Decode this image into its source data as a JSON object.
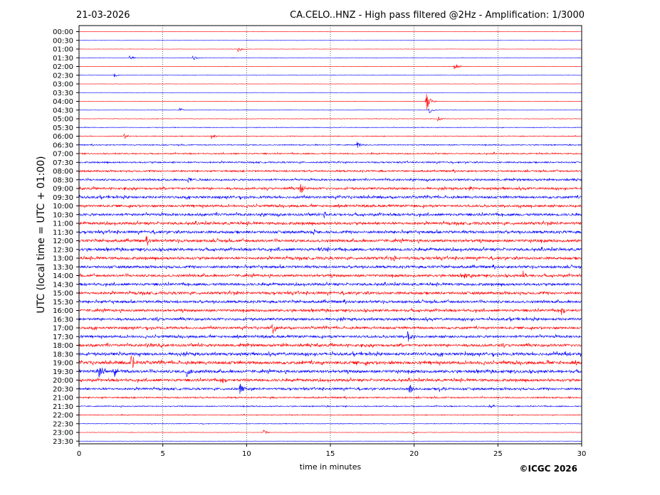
{
  "header": {
    "date": "21-03-2026",
    "station_title": "CA.CELO..HNZ - High pass filtered @2Hz - Amplification: 1/3000"
  },
  "footer": {
    "copyright": "©ICGC 2026"
  },
  "chart_data": {
    "type": "line",
    "title": "CA.CELO..HNZ - High pass filtered @2Hz - Amplification: 1/3000",
    "xlabel": "time in minutes",
    "ylabel": "UTC (local time = UTC + 01:00)",
    "xlim": [
      0,
      30
    ],
    "x_ticks": [
      0,
      5,
      10,
      15,
      20,
      25,
      30
    ],
    "grid": "vertical dotted at every 5 minutes",
    "trace_colors": [
      "#ff0000",
      "#0000ff"
    ],
    "rows": [
      "00:00",
      "00:30",
      "01:00",
      "01:30",
      "02:00",
      "02:30",
      "03:00",
      "03:30",
      "04:00",
      "04:30",
      "05:00",
      "05:30",
      "06:00",
      "06:30",
      "07:00",
      "07:30",
      "08:00",
      "08:30",
      "09:00",
      "09:30",
      "10:00",
      "10:30",
      "11:00",
      "11:30",
      "12:00",
      "12:30",
      "13:00",
      "13:30",
      "14:00",
      "14:30",
      "15:00",
      "15:30",
      "16:00",
      "16:30",
      "17:00",
      "17:30",
      "18:00",
      "18:30",
      "19:00",
      "19:30",
      "20:00",
      "20:30",
      "21:00",
      "21:30",
      "22:00",
      "22:30",
      "23:00",
      "23:30"
    ],
    "row_noise_level": [
      0.3,
      0.3,
      0.3,
      0.4,
      0.4,
      0.4,
      0.3,
      0.3,
      0.4,
      0.4,
      0.5,
      0.6,
      0.8,
      1.0,
      1.2,
      1.4,
      1.6,
      1.8,
      2.0,
      2.2,
      2.2,
      2.3,
      2.4,
      2.4,
      2.5,
      2.5,
      2.4,
      2.3,
      2.3,
      2.3,
      2.4,
      2.3,
      2.3,
      2.3,
      2.2,
      2.2,
      2.4,
      2.6,
      2.8,
      2.6,
      2.4,
      2.0,
      1.4,
      1.0,
      0.8,
      0.6,
      0.4,
      0.3
    ],
    "events": [
      {
        "row": "01:00",
        "minute": 9.5,
        "amplitude": 5
      },
      {
        "row": "01:30",
        "minute": 3.0,
        "amplitude": 4
      },
      {
        "row": "01:30",
        "minute": 6.8,
        "amplitude": 4
      },
      {
        "row": "02:00",
        "minute": 22.4,
        "amplitude": 6
      },
      {
        "row": "02:30",
        "minute": 2.1,
        "amplitude": 3
      },
      {
        "row": "04:00",
        "minute": 20.7,
        "amplitude": 18
      },
      {
        "row": "04:30",
        "minute": 6.0,
        "amplitude": 3
      },
      {
        "row": "04:30",
        "minute": 20.9,
        "amplitude": 5
      },
      {
        "row": "05:00",
        "minute": 21.4,
        "amplitude": 4
      },
      {
        "row": "06:00",
        "minute": 2.7,
        "amplitude": 4
      },
      {
        "row": "06:00",
        "minute": 7.9,
        "amplitude": 4
      },
      {
        "row": "06:30",
        "minute": 16.6,
        "amplitude": 5
      },
      {
        "row": "08:30",
        "minute": 6.5,
        "amplitude": 5
      },
      {
        "row": "09:00",
        "minute": 13.2,
        "amplitude": 8
      },
      {
        "row": "09:00",
        "minute": 23.3,
        "amplitude": 6
      },
      {
        "row": "10:30",
        "minute": 14.6,
        "amplitude": 6
      },
      {
        "row": "11:30",
        "minute": 14.0,
        "amplitude": 7
      },
      {
        "row": "12:00",
        "minute": 4.0,
        "amplitude": 9
      },
      {
        "row": "12:30",
        "minute": 14.3,
        "amplitude": 6
      },
      {
        "row": "13:00",
        "minute": 18.8,
        "amplitude": 6
      },
      {
        "row": "14:00",
        "minute": 23.0,
        "amplitude": 6
      },
      {
        "row": "14:00",
        "minute": 26.5,
        "amplitude": 6
      },
      {
        "row": "16:00",
        "minute": 28.8,
        "amplitude": 6
      },
      {
        "row": "17:00",
        "minute": 11.5,
        "amplitude": 11
      },
      {
        "row": "17:30",
        "minute": 19.6,
        "amplitude": 9
      },
      {
        "row": "18:00",
        "minute": 4.0,
        "amplitude": 5
      },
      {
        "row": "18:30",
        "minute": 29.0,
        "amplitude": 5
      },
      {
        "row": "19:00",
        "minute": 3.1,
        "amplitude": 11
      },
      {
        "row": "19:30",
        "minute": 1.2,
        "amplitude": 9
      },
      {
        "row": "19:30",
        "minute": 2.1,
        "amplitude": 8
      },
      {
        "row": "19:30",
        "minute": 6.4,
        "amplitude": 8
      },
      {
        "row": "20:00",
        "minute": 8.5,
        "amplitude": 6
      },
      {
        "row": "20:30",
        "minute": 9.6,
        "amplitude": 8
      },
      {
        "row": "20:30",
        "minute": 19.7,
        "amplitude": 9
      },
      {
        "row": "20:30",
        "minute": 21.5,
        "amplitude": 6
      },
      {
        "row": "21:30",
        "minute": 24.5,
        "amplitude": 3
      },
      {
        "row": "23:00",
        "minute": 11.0,
        "amplitude": 4
      },
      {
        "row": "23:00",
        "minute": 19.9,
        "amplitude": 3
      }
    ]
  }
}
